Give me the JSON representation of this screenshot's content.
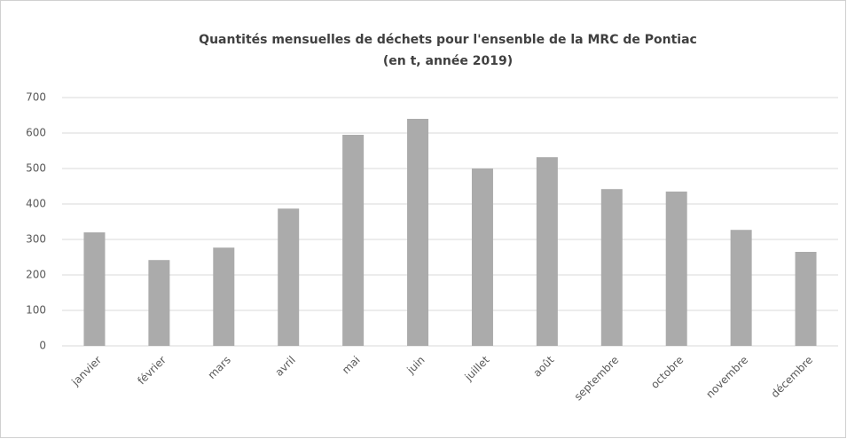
{
  "chart_data": {
    "type": "bar",
    "title": "Quantités mensuelles de déchets pour l'ensenble de la MRC de Pontiac",
    "subtitle": "(en t, année 2019)",
    "categories": [
      "janvier",
      "février",
      "mars",
      "avril",
      "mai",
      "juin",
      "juillet",
      "août",
      "septembre",
      "octobre",
      "novembre",
      "décembre"
    ],
    "values": [
      320,
      242,
      277,
      387,
      595,
      640,
      500,
      532,
      442,
      435,
      327,
      265
    ],
    "color": "#ababab",
    "ylim": [
      0,
      700
    ],
    "yticks": [
      0,
      100,
      200,
      300,
      400,
      500,
      600,
      700
    ],
    "grid": true
  }
}
